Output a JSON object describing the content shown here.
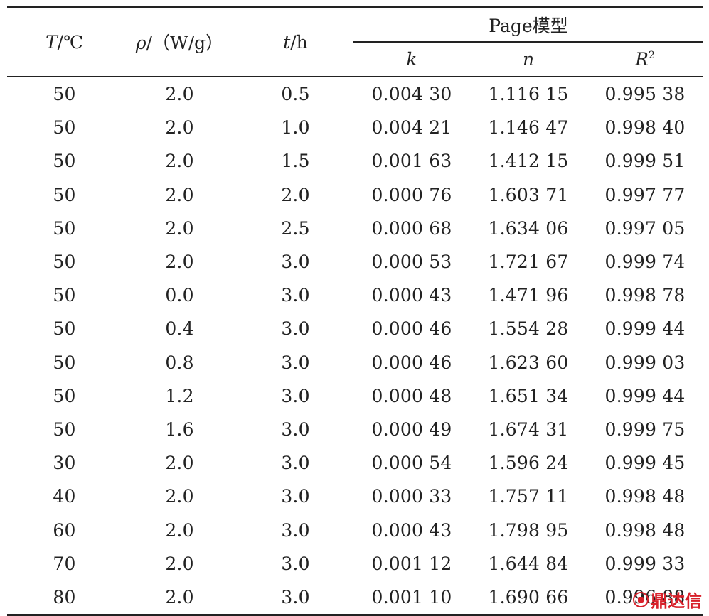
{
  "header": {
    "col_T": {
      "var": "T",
      "unit": "/℃"
    },
    "col_rho": {
      "var": "ρ",
      "unit": "/（W/g）"
    },
    "col_t": {
      "var": "t",
      "unit": "/h"
    },
    "group": "Page模型",
    "col_k": "k",
    "col_n": "n",
    "col_R2": {
      "var": "R",
      "sup": "2"
    }
  },
  "rows": [
    [
      "50",
      "2.0",
      "0.5",
      "0.004 30",
      "1.116 15",
      "0.995 38"
    ],
    [
      "50",
      "2.0",
      "1.0",
      "0.004 21",
      "1.146 47",
      "0.998 40"
    ],
    [
      "50",
      "2.0",
      "1.5",
      "0.001 63",
      "1.412 15",
      "0.999 51"
    ],
    [
      "50",
      "2.0",
      "2.0",
      "0.000 76",
      "1.603 71",
      "0.997 77"
    ],
    [
      "50",
      "2.0",
      "2.5",
      "0.000 68",
      "1.634 06",
      "0.997 05"
    ],
    [
      "50",
      "2.0",
      "3.0",
      "0.000 53",
      "1.721 67",
      "0.999 74"
    ],
    [
      "50",
      "0.0",
      "3.0",
      "0.000 43",
      "1.471 96",
      "0.998 78"
    ],
    [
      "50",
      "0.4",
      "3.0",
      "0.000 46",
      "1.554 28",
      "0.999 44"
    ],
    [
      "50",
      "0.8",
      "3.0",
      "0.000 46",
      "1.623 60",
      "0.999 03"
    ],
    [
      "50",
      "1.2",
      "3.0",
      "0.000 48",
      "1.651 34",
      "0.999 44"
    ],
    [
      "50",
      "1.6",
      "3.0",
      "0.000 49",
      "1.674 31",
      "0.999 75"
    ],
    [
      "30",
      "2.0",
      "3.0",
      "0.000 54",
      "1.596 24",
      "0.999 45"
    ],
    [
      "40",
      "2.0",
      "3.0",
      "0.000 33",
      "1.757 11",
      "0.998 48"
    ],
    [
      "60",
      "2.0",
      "3.0",
      "0.000 43",
      "1.798 95",
      "0.998 48"
    ],
    [
      "70",
      "2.0",
      "3.0",
      "0.001 12",
      "1.644 84",
      "0.999 33"
    ],
    [
      "80",
      "2.0",
      "3.0",
      "0.001 10",
      "1.690 66",
      "0.996 88"
    ]
  ],
  "watermark": {
    "text": "鼎达信",
    "icon": "dingdaxin-logo-icon",
    "color": "#d8202a"
  }
}
